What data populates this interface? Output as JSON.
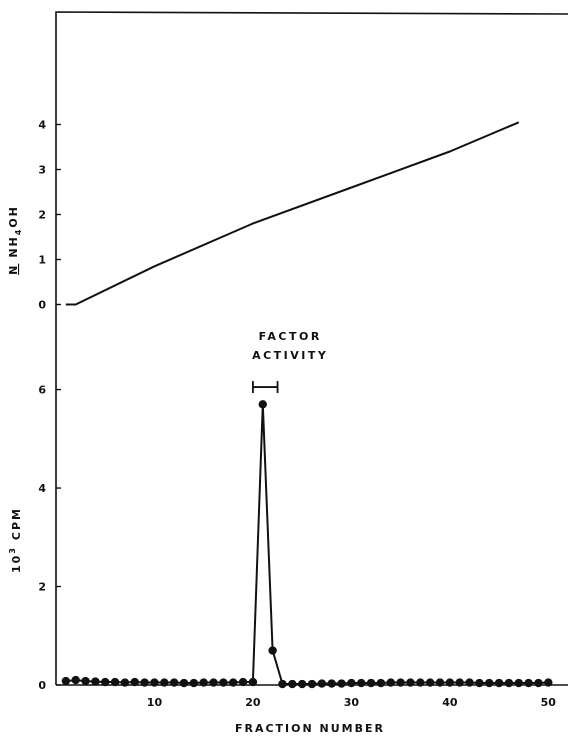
{
  "chart_data": {
    "type": "line",
    "xlabel": "FRACTION NUMBER",
    "xlim": [
      0,
      52
    ],
    "xticks": [
      10,
      20,
      30,
      40,
      50
    ],
    "grid": false,
    "panels": [
      {
        "id": "top",
        "ylabel": "N NH4OH",
        "ylabel_parts": {
          "n": "N",
          "nh": "NH",
          "sub": "4",
          "oh": "OH"
        },
        "ylim": [
          -0.3,
          6.5
        ],
        "yticks": [
          0,
          1,
          2,
          3,
          4
        ],
        "series": [
          {
            "x": [
              1,
              2,
              10,
              20,
              30,
              40,
              47
            ],
            "y": [
              0,
              0,
              0.85,
              1.8,
              2.6,
              3.4,
              4.05
            ]
          }
        ]
      },
      {
        "id": "bottom",
        "ylabel": "10³ CPM",
        "ylabel_parts": {
          "base": "10",
          "sup": "3",
          "unit": "CPM"
        },
        "ylim": [
          0,
          6.6
        ],
        "yticks": [
          0,
          2,
          4,
          6
        ],
        "series": [
          {
            "markers": true,
            "x": [
              1,
              2,
              3,
              4,
              5,
              6,
              7,
              8,
              9,
              10,
              11,
              12,
              13,
              14,
              15,
              16,
              17,
              18,
              19,
              20,
              21,
              22,
              23,
              24,
              25,
              26,
              27,
              28,
              29,
              30,
              31,
              32,
              33,
              34,
              35,
              36,
              37,
              38,
              39,
              40,
              41,
              42,
              43,
              44,
              45,
              46,
              47,
              48,
              49,
              50
            ],
            "y": [
              0.08,
              0.1,
              0.08,
              0.07,
              0.06,
              0.06,
              0.05,
              0.06,
              0.05,
              0.05,
              0.05,
              0.05,
              0.04,
              0.04,
              0.05,
              0.05,
              0.05,
              0.05,
              0.06,
              0.06,
              5.7,
              0.7,
              0.02,
              0.02,
              0.02,
              0.02,
              0.03,
              0.03,
              0.03,
              0.04,
              0.04,
              0.04,
              0.04,
              0.05,
              0.05,
              0.05,
              0.05,
              0.05,
              0.05,
              0.05,
              0.05,
              0.05,
              0.04,
              0.04,
              0.04,
              0.04,
              0.04,
              0.04,
              0.04,
              0.05
            ]
          }
        ],
        "annotation": {
          "line1": "FACTOR",
          "line2": "ACTIVITY",
          "x_range": [
            20,
            22.5
          ],
          "y": 6.05
        }
      }
    ]
  }
}
